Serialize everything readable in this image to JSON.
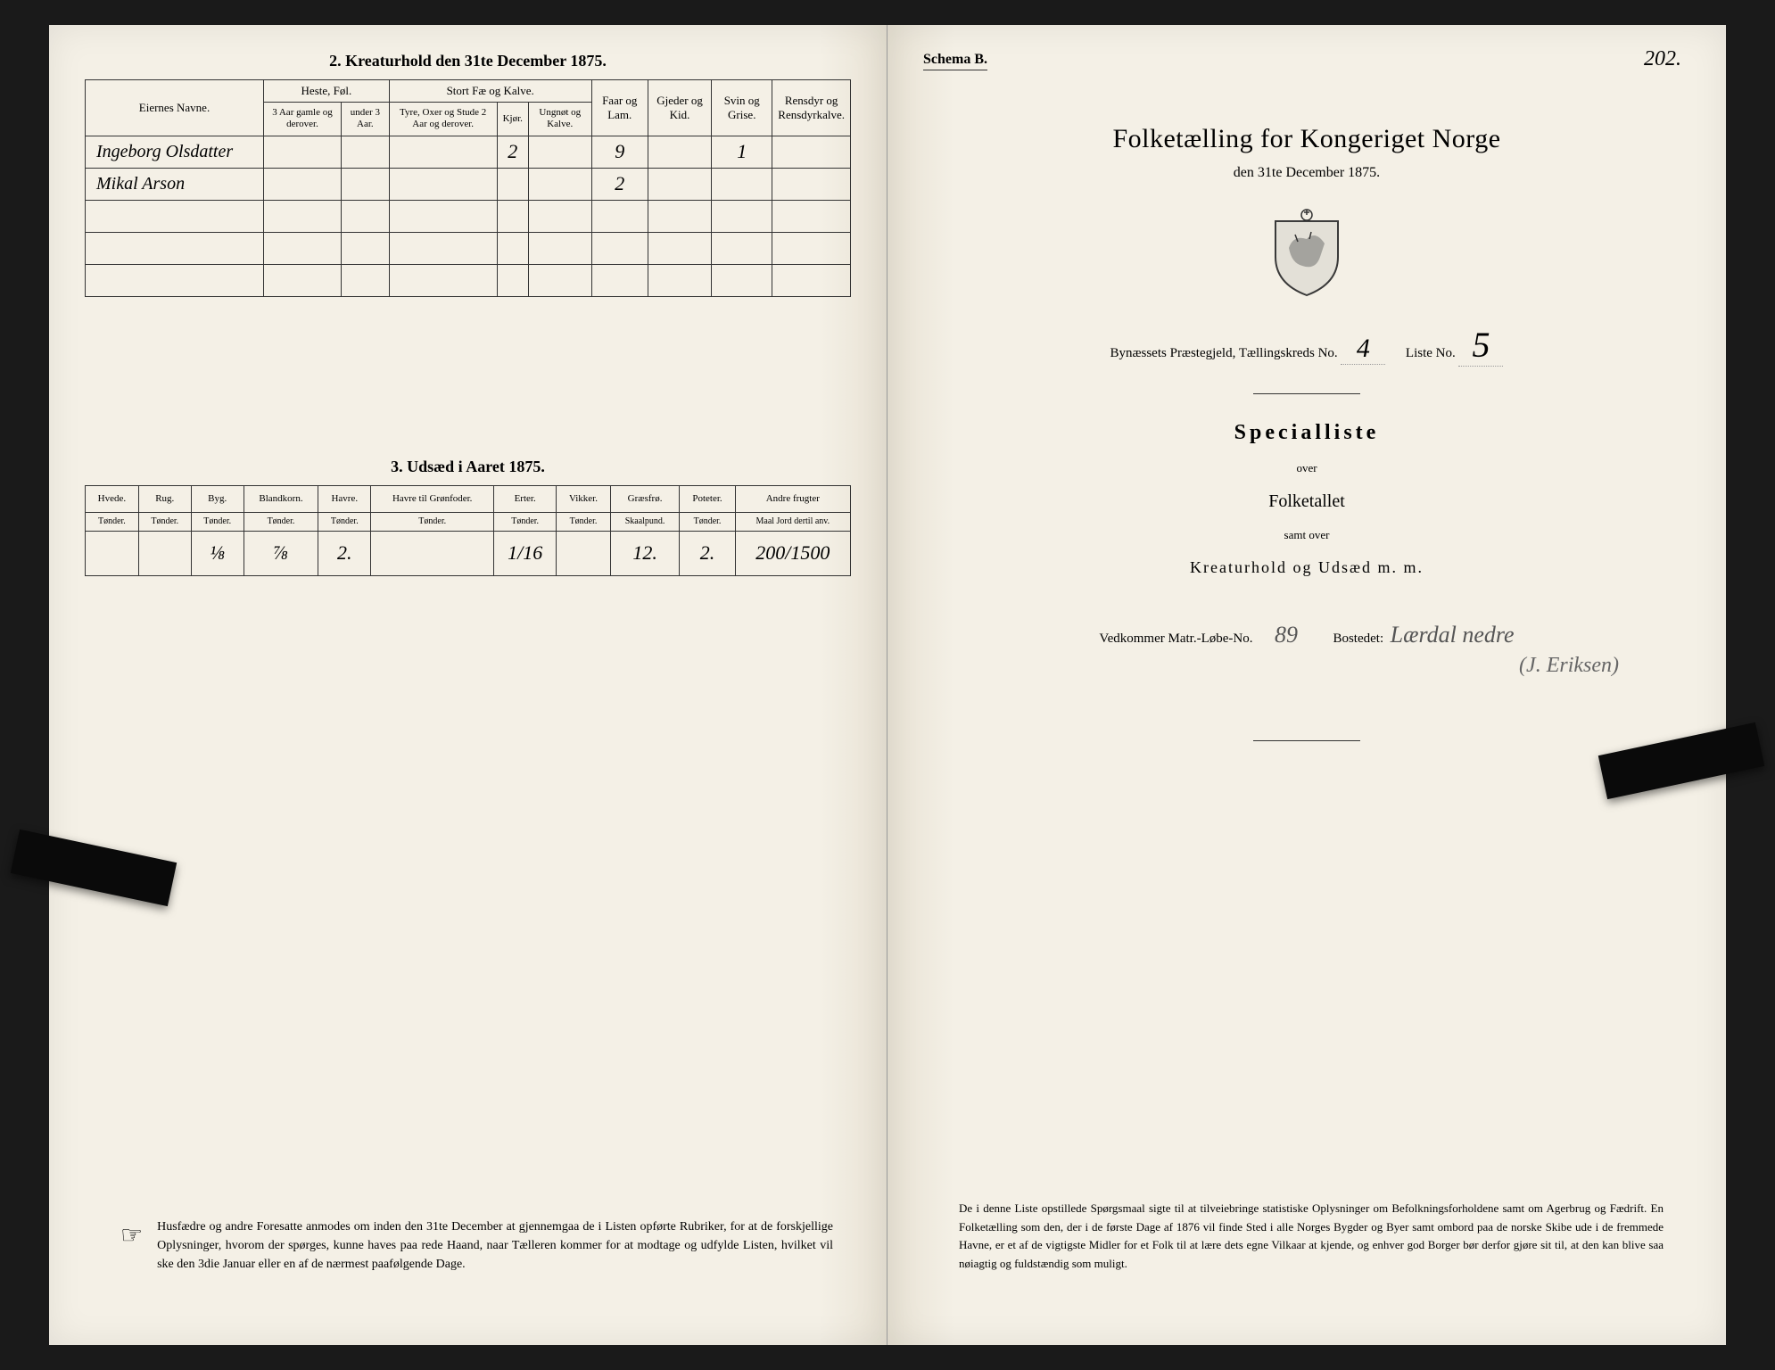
{
  "left": {
    "section2_title": "2.  Kreaturhold den 31te December 1875.",
    "table1": {
      "col_owner": "Eiernes Navne.",
      "group_heste": "Heste, Føl.",
      "group_stort": "Stort Fæ og Kalve.",
      "col_h1": "3 Aar gamle og derover.",
      "col_h2": "under 3 Aar.",
      "col_s1": "Tyre, Oxer og Stude 2 Aar og derover.",
      "col_s2": "Kjør.",
      "col_s3": "Ungnøt og Kalve.",
      "col_faar": "Faar og Lam.",
      "col_gjeder": "Gjeder og Kid.",
      "col_svin": "Svin og Grise.",
      "col_ren": "Rensdyr og Rensdyrkalve.",
      "rows": [
        {
          "name": "Ingeborg Olsdatter",
          "v_s2": "2",
          "v_faar": "9",
          "v_svin": "1"
        },
        {
          "name": "Mikal Arson",
          "v_faar": "2"
        }
      ]
    },
    "section3_title": "3.  Udsæd i Aaret 1875.",
    "table2": {
      "cols": [
        "Hvede.",
        "Rug.",
        "Byg.",
        "Blandkorn.",
        "Havre.",
        "Havre til Grønfoder.",
        "Erter.",
        "Vikker.",
        "Græsfrø.",
        "Poteter.",
        "Andre frugter"
      ],
      "units": [
        "Tønder.",
        "Tønder.",
        "Tønder.",
        "Tønder.",
        "Tønder.",
        "Tønder.",
        "Tønder.",
        "Tønder.",
        "Skaalpund.",
        "Tønder.",
        "Maal Jord dertil anv."
      ],
      "values": [
        "",
        "",
        "⅛",
        "⅞",
        "2.",
        "",
        "1/16",
        "",
        "12.",
        "2.",
        "200/1500"
      ]
    },
    "footer": "Husfædre og andre Foresatte anmodes om inden den 31te December at gjennemgaa de i Listen opførte Rubriker, for at de forskjellige Oplysninger, hvorom der spørges, kunne haves paa rede Haand, naar Tælleren kommer for at modtage og udfylde Listen, hvilket vil ske den 3die Januar eller en af de nærmest paafølgende Dage."
  },
  "right": {
    "schema": "Schema B.",
    "page_no": "202.",
    "main_title": "Folketælling for Kongeriget Norge",
    "date": "den 31te December 1875.",
    "parish_label": "Bynæssets Præstegjeld, Tællingskreds No.",
    "kreds_no": "4",
    "liste_label": "Liste No.",
    "liste_no": "5",
    "special": "Specialliste",
    "over": "over",
    "folketallet": "Folketallet",
    "samt": "samt over",
    "kreatur": "Kreaturhold og Udsæd m. m.",
    "vedkommer_label": "Vedkommer Matr.-Løbe-No.",
    "matr_no": "89",
    "bosted_label": "Bostedet:",
    "bosted_value": "Lærdal nedre",
    "bosted_value2": "(J. Eriksen)",
    "footer": "De i denne Liste opstillede Spørgsmaal sigte til at tilveiebringe statistiske Oplysninger om Befolkningsforholdene samt om Agerbrug og Fædrift.  En Folketælling som den, der i de første Dage af 1876 vil finde Sted i alle Norges Bygder og Byer samt ombord paa de norske Skibe ude i de fremmede Havne, er et af de vigtigste Midler for et Folk til at lære dets egne Vilkaar at kjende, og enhver god Borger bør derfor gjøre sit til, at den kan blive saa nøiagtig og fuldstændig som muligt."
  },
  "colors": {
    "paper": "#f4f0e6",
    "ink": "#222222",
    "border": "#333333"
  }
}
